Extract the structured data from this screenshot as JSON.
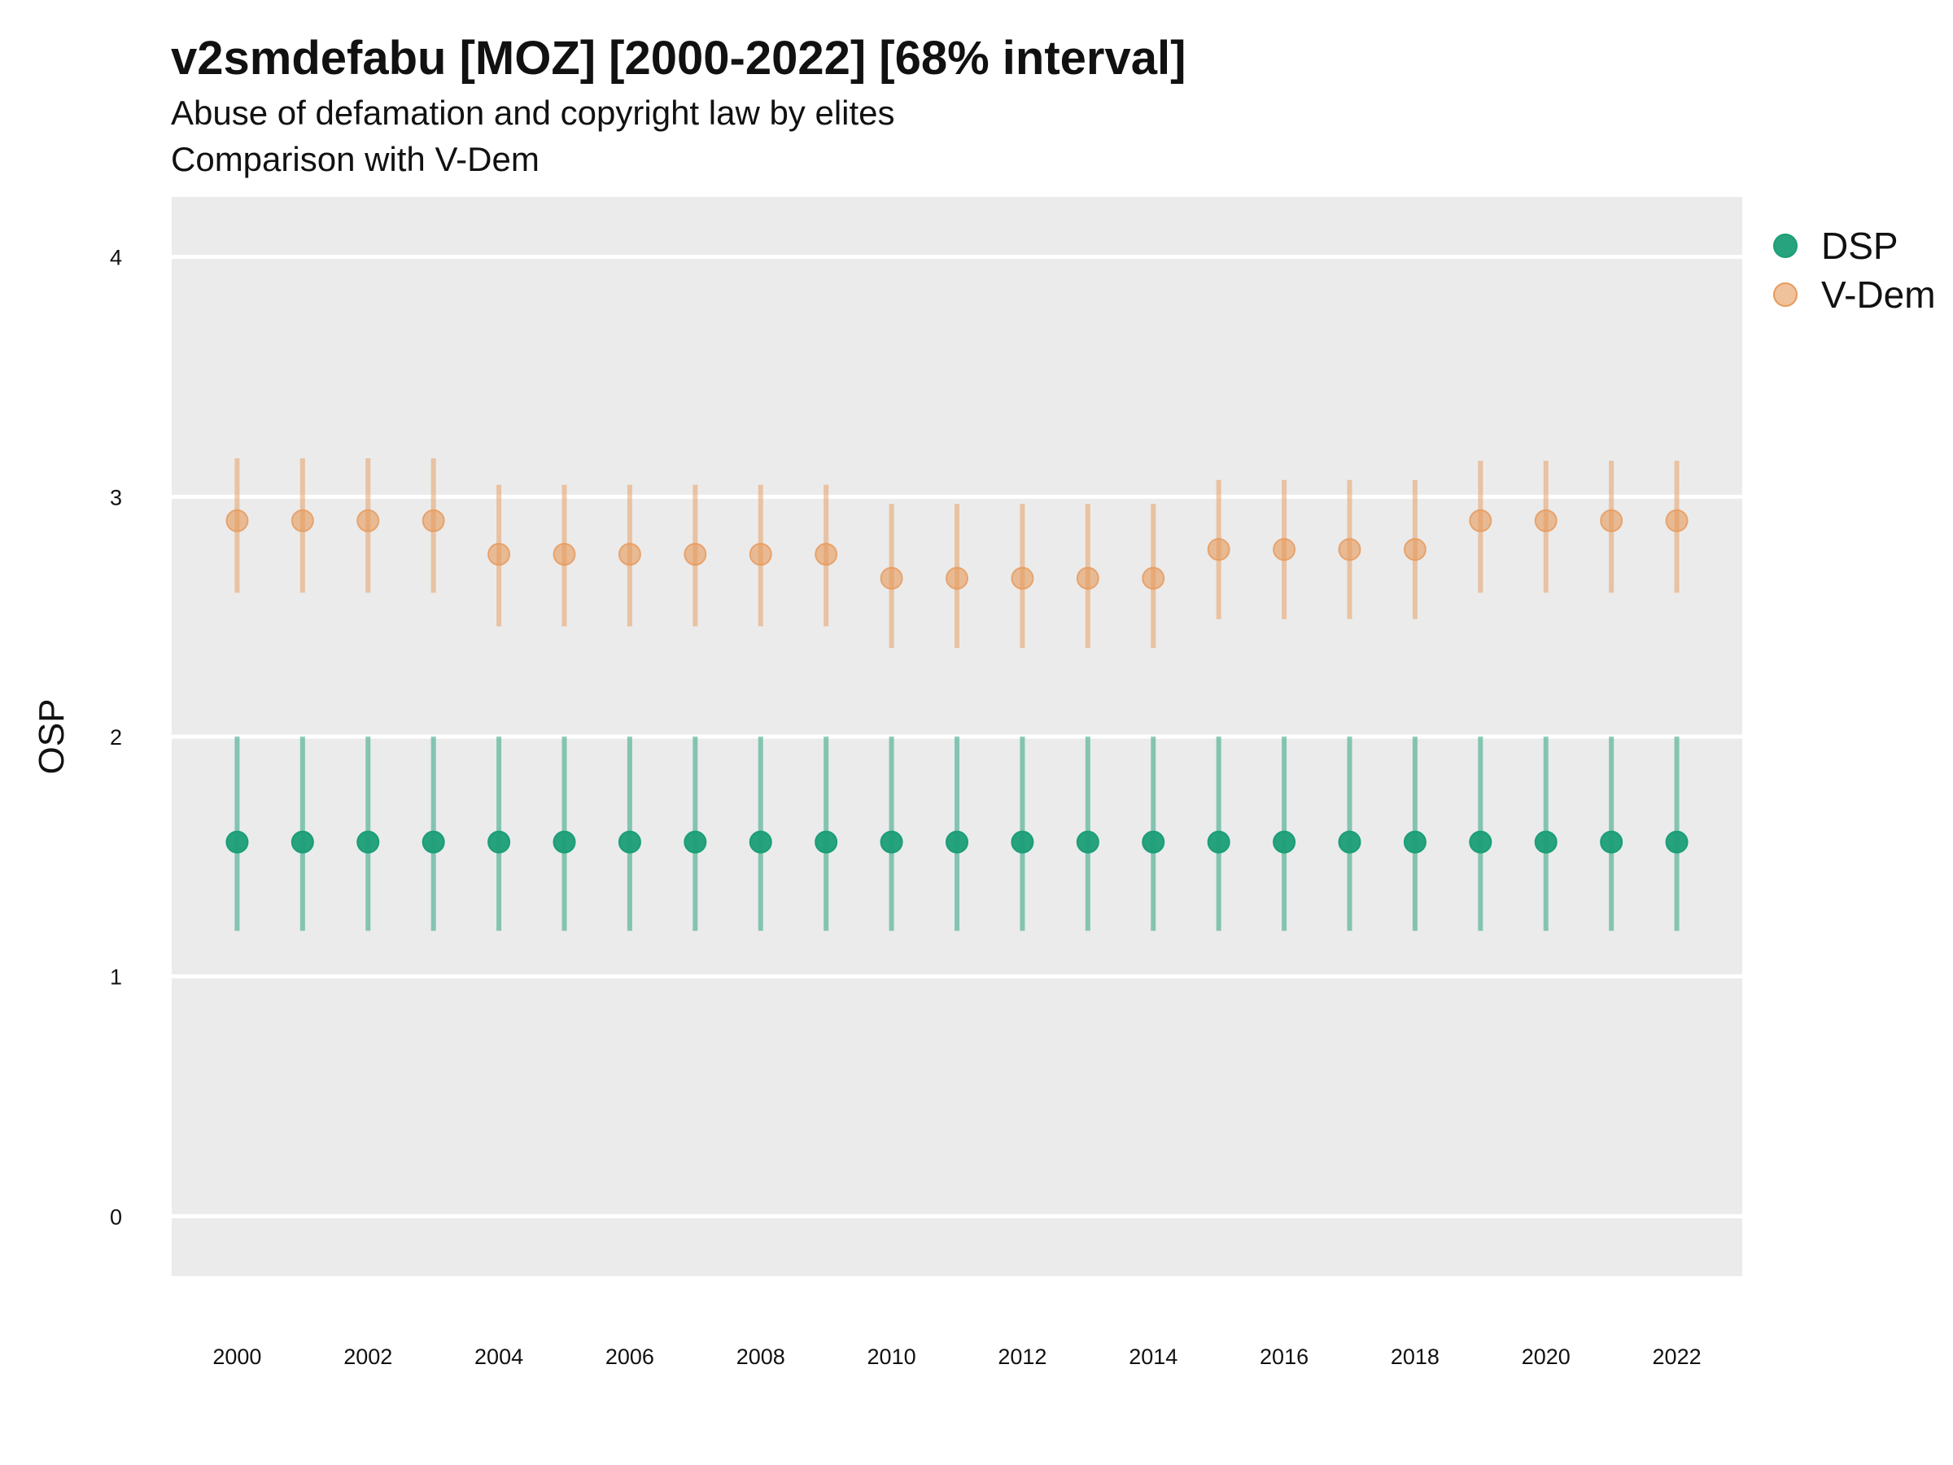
{
  "chart_data": {
    "type": "scatter",
    "title": "v2smdefabu [MOZ] [2000-2022] [68% interval]",
    "subtitle": [
      "Abuse of defamation and copyright law by elites",
      "Comparison with V-Dem"
    ],
    "xlabel": "",
    "ylabel": "OSP",
    "xlim": [
      1999.0,
      2023.0
    ],
    "ylim": [
      -0.25,
      4.25
    ],
    "x_ticks": [
      "2000",
      "2002",
      "2004",
      "2006",
      "2008",
      "2010",
      "2012",
      "2014",
      "2016",
      "2018",
      "2020",
      "2022"
    ],
    "y_ticks": [
      "0",
      "1",
      "2",
      "3",
      "4"
    ],
    "grid": true,
    "legend_position": "right",
    "x": [
      2000,
      2001,
      2002,
      2003,
      2004,
      2005,
      2006,
      2007,
      2008,
      2009,
      2010,
      2011,
      2012,
      2013,
      2014,
      2015,
      2016,
      2017,
      2018,
      2019,
      2020,
      2021,
      2022
    ],
    "series": [
      {
        "name": "DSP",
        "color": "#1b9e77",
        "values": [
          1.56,
          1.56,
          1.56,
          1.56,
          1.56,
          1.56,
          1.56,
          1.56,
          1.56,
          1.56,
          1.56,
          1.56,
          1.56,
          1.56,
          1.56,
          1.56,
          1.56,
          1.56,
          1.56,
          1.56,
          1.56,
          1.56,
          1.56
        ],
        "lower": [
          1.19,
          1.19,
          1.19,
          1.19,
          1.19,
          1.19,
          1.19,
          1.19,
          1.19,
          1.19,
          1.19,
          1.19,
          1.19,
          1.19,
          1.19,
          1.19,
          1.19,
          1.19,
          1.19,
          1.19,
          1.19,
          1.19,
          1.19
        ],
        "upper": [
          2.0,
          2.0,
          2.0,
          2.0,
          2.0,
          2.0,
          2.0,
          2.0,
          2.0,
          2.0,
          2.0,
          2.0,
          2.0,
          2.0,
          2.0,
          2.0,
          2.0,
          2.0,
          2.0,
          2.0,
          2.0,
          2.0,
          2.0
        ]
      },
      {
        "name": "V-Dem",
        "color": "#e6995a",
        "values": [
          2.9,
          2.9,
          2.9,
          2.9,
          2.76,
          2.76,
          2.76,
          2.76,
          2.76,
          2.76,
          2.66,
          2.66,
          2.66,
          2.66,
          2.66,
          2.78,
          2.78,
          2.78,
          2.78,
          2.9,
          2.9,
          2.9,
          2.9
        ],
        "lower": [
          2.6,
          2.6,
          2.6,
          2.6,
          2.46,
          2.46,
          2.46,
          2.46,
          2.46,
          2.46,
          2.37,
          2.37,
          2.37,
          2.37,
          2.37,
          2.49,
          2.49,
          2.49,
          2.49,
          2.6,
          2.6,
          2.6,
          2.6
        ],
        "upper": [
          3.16,
          3.16,
          3.16,
          3.16,
          3.05,
          3.05,
          3.05,
          3.05,
          3.05,
          3.05,
          2.97,
          2.97,
          2.97,
          2.97,
          2.97,
          3.07,
          3.07,
          3.07,
          3.07,
          3.15,
          3.15,
          3.15,
          3.15
        ]
      }
    ]
  }
}
